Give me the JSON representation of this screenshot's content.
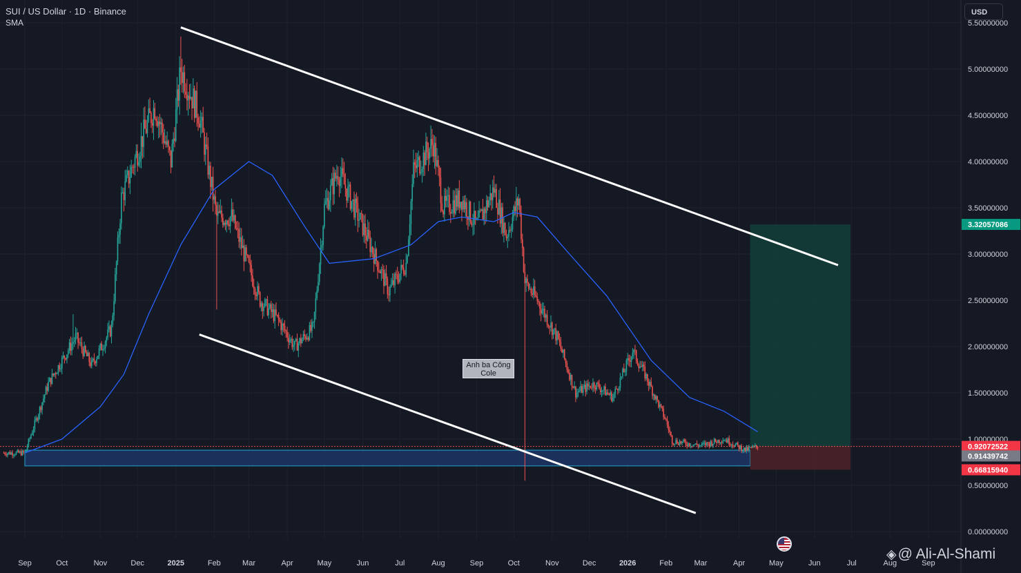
{
  "header": {
    "symbol_line": "SUI / US Dollar · 1D · Binance",
    "indicator": "SMA",
    "currency_button": "USD"
  },
  "annotation": {
    "line1": "Anh ba Công",
    "line2": "Cole"
  },
  "watermark": {
    "icon": "binance-icon",
    "text": "@ Ali-Al-Shami"
  },
  "flag_icon": "us-flag-icon",
  "colors": {
    "background": "#151924",
    "grid": "#1e222d",
    "up": "#26a69a",
    "down": "#ef5350",
    "sma": "#2962ff",
    "trendline": "#ffffff",
    "zone_fill": "#1e3a6e",
    "zone_border": "#22a6d0",
    "target_fill": "#13403b",
    "stop_fill": "#4a2228",
    "text": "#d1d4dc"
  },
  "chart_data": {
    "type": "candlestick",
    "title": "SUI / US Dollar · 1D · Binance",
    "x_axis_labels": [
      "Sep",
      "Oct",
      "Nov",
      "Dec",
      "2025",
      "Feb",
      "Mar",
      "Apr",
      "May",
      "Jun",
      "Jul",
      "Aug",
      "Sep",
      "Oct",
      "Nov",
      "Dec",
      "2026",
      "Feb",
      "Mar",
      "Apr",
      "May",
      "Jun",
      "Jul",
      "Aug",
      "Sep"
    ],
    "y_axis_labels": [
      "0.00000000",
      "0.50000000",
      "1.00000000",
      "1.50000000",
      "2.00000000",
      "2.50000000",
      "3.00000000",
      "3.50000000",
      "4.00000000",
      "4.50000000",
      "5.00000000",
      "5.50000000"
    ],
    "ylim": [
      0,
      5.55
    ],
    "price_key_points": [
      {
        "date": "2024-08-15",
        "price": 0.85
      },
      {
        "date": "2024-09-01",
        "price": 0.85
      },
      {
        "date": "2024-09-20",
        "price": 1.6
      },
      {
        "date": "2024-10-12",
        "price": 2.1
      },
      {
        "date": "2024-10-25",
        "price": 1.8
      },
      {
        "date": "2024-11-10",
        "price": 2.2
      },
      {
        "date": "2024-11-18",
        "price": 3.6
      },
      {
        "date": "2024-12-06",
        "price": 4.3
      },
      {
        "date": "2024-12-15",
        "price": 4.6
      },
      {
        "date": "2024-12-28",
        "price": 4.0
      },
      {
        "date": "2025-01-05",
        "price": 5.0
      },
      {
        "date": "2025-01-20",
        "price": 4.5
      },
      {
        "date": "2025-02-03",
        "price": 3.4
      },
      {
        "date": "2025-02-15",
        "price": 3.4
      },
      {
        "date": "2025-03-10",
        "price": 2.5
      },
      {
        "date": "2025-03-24",
        "price": 2.3
      },
      {
        "date": "2025-04-07",
        "price": 2.0
      },
      {
        "date": "2025-04-22",
        "price": 2.2
      },
      {
        "date": "2025-05-01",
        "price": 3.5
      },
      {
        "date": "2025-05-12",
        "price": 3.9
      },
      {
        "date": "2025-06-01",
        "price": 3.3
      },
      {
        "date": "2025-06-22",
        "price": 2.6
      },
      {
        "date": "2025-07-06",
        "price": 2.9
      },
      {
        "date": "2025-07-12",
        "price": 3.9
      },
      {
        "date": "2025-07-28",
        "price": 4.2
      },
      {
        "date": "2025-08-05",
        "price": 3.5
      },
      {
        "date": "2025-08-20",
        "price": 3.6
      },
      {
        "date": "2025-09-01",
        "price": 3.3
      },
      {
        "date": "2025-09-15",
        "price": 3.7
      },
      {
        "date": "2025-09-25",
        "price": 3.2
      },
      {
        "date": "2025-10-05",
        "price": 3.6
      },
      {
        "date": "2025-10-10",
        "price": 2.7
      },
      {
        "date": "2025-10-20",
        "price": 2.5
      },
      {
        "date": "2025-11-05",
        "price": 2.1
      },
      {
        "date": "2025-11-20",
        "price": 1.5
      },
      {
        "date": "2025-12-05",
        "price": 1.6
      },
      {
        "date": "2025-12-20",
        "price": 1.45
      },
      {
        "date": "2026-01-05",
        "price": 1.95
      },
      {
        "date": "2026-01-15",
        "price": 1.7
      },
      {
        "date": "2026-02-01",
        "price": 1.2
      },
      {
        "date": "2026-02-06",
        "price": 0.98
      },
      {
        "date": "2026-03-01",
        "price": 0.93
      },
      {
        "date": "2026-03-20",
        "price": 1.0
      },
      {
        "date": "2026-04-06",
        "price": 0.88
      },
      {
        "date": "2026-04-16",
        "price": 0.92
      }
    ],
    "notable_wicks": [
      {
        "date": "2024-10-10",
        "high": 2.35
      },
      {
        "date": "2025-01-05",
        "high": 5.35
      },
      {
        "date": "2025-02-03",
        "low": 2.4
      },
      {
        "date": "2025-10-10",
        "low": 0.55
      }
    ],
    "sma": {
      "name": "SMA",
      "points": [
        {
          "date": "2024-09-01",
          "value": 0.85
        },
        {
          "date": "2024-10-01",
          "value": 1.0
        },
        {
          "date": "2024-11-01",
          "value": 1.35
        },
        {
          "date": "2024-11-20",
          "value": 1.7
        },
        {
          "date": "2024-12-10",
          "value": 2.35
        },
        {
          "date": "2025-01-05",
          "value": 3.1
        },
        {
          "date": "2025-02-01",
          "value": 3.7
        },
        {
          "date": "2025-03-01",
          "value": 4.0
        },
        {
          "date": "2025-03-20",
          "value": 3.85
        },
        {
          "date": "2025-04-15",
          "value": 3.3
        },
        {
          "date": "2025-05-05",
          "value": 2.9
        },
        {
          "date": "2025-06-10",
          "value": 2.95
        },
        {
          "date": "2025-07-10",
          "value": 3.1
        },
        {
          "date": "2025-08-01",
          "value": 3.35
        },
        {
          "date": "2025-08-20",
          "value": 3.4
        },
        {
          "date": "2025-09-15",
          "value": 3.35
        },
        {
          "date": "2025-10-01",
          "value": 3.45
        },
        {
          "date": "2025-10-20",
          "value": 3.4
        },
        {
          "date": "2025-11-15",
          "value": 3.0
        },
        {
          "date": "2025-12-15",
          "value": 2.55
        },
        {
          "date": "2026-01-20",
          "value": 1.85
        },
        {
          "date": "2026-02-20",
          "value": 1.45
        },
        {
          "date": "2026-03-20",
          "value": 1.3
        },
        {
          "date": "2026-04-16",
          "value": 1.08
        }
      ]
    },
    "trendlines": [
      {
        "name": "upper-channel",
        "from": {
          "date": "2025-01-05",
          "price": 5.45
        },
        "to": {
          "date": "2026-06-20",
          "price": 2.88
        }
      },
      {
        "name": "lower-channel",
        "from": {
          "date": "2025-01-20",
          "price": 2.13
        },
        "to": {
          "date": "2026-02-25",
          "price": 0.2
        }
      }
    ],
    "support_zone": {
      "from_date": "2024-09-01",
      "to_date": "2026-04-10",
      "top": 0.88,
      "bottom": 0.71
    },
    "position": {
      "from_date": "2026-04-10",
      "to_date": "2026-06-30",
      "entry": 0.92072522,
      "target": 3.32057086,
      "stop": 0.6681594
    },
    "price_labels": [
      {
        "value": 3.32057086,
        "text": "3.32057086",
        "color": "#089981"
      },
      {
        "value": 0.92072522,
        "text": "0.92072522",
        "color": "#f23645"
      },
      {
        "value": 0.91439742,
        "text": "0.91439742",
        "color": "#787b86"
      },
      {
        "value": 0.6681594,
        "text": "0.66815940",
        "color": "#f23645"
      }
    ],
    "grid": true
  }
}
